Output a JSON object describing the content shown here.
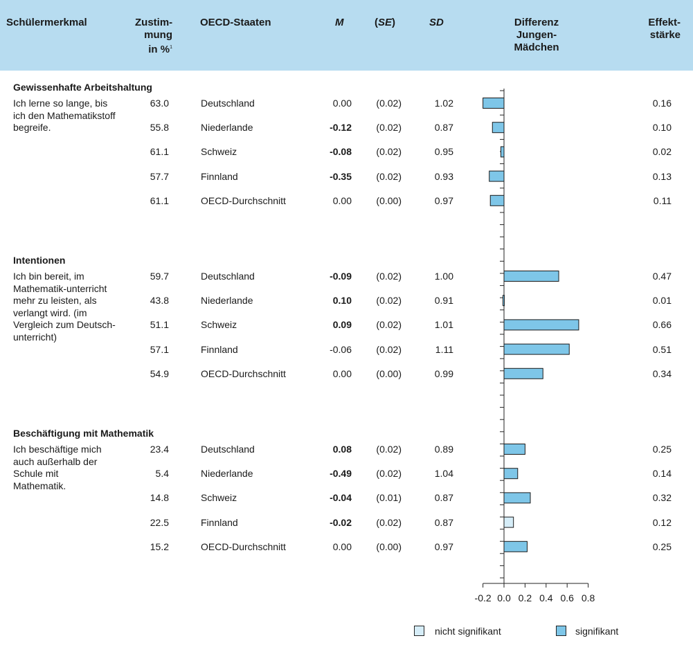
{
  "header": {
    "col_merkmal": "Schülermerkmal",
    "col_zustimmung": [
      "Zustim-",
      "mung",
      "in %"
    ],
    "col_zustimmung_sup": "1",
    "col_staaten": "OECD-Staaten",
    "col_m": "M",
    "col_se_open": "(",
    "col_se": "SE",
    "col_se_close": ")",
    "col_sd": "SD",
    "col_diff": [
      "Differenz",
      "Jungen-",
      "Mädchen"
    ],
    "col_effekt": [
      "Effekt-",
      "stärke"
    ]
  },
  "sections": [
    {
      "title": "Gewissenhafte Arbeitshaltung",
      "description": "Ich lerne so lange, bis ich den Mathematikstoff begreife.",
      "rows": [
        {
          "zustimmung": "63.0",
          "staat": "Deutschland",
          "m": "0.00",
          "m_bold": false,
          "se": "(0.02)",
          "sd": "1.02",
          "effekt": "0.16"
        },
        {
          "zustimmung": "55.8",
          "staat": "Niederlande",
          "m": "-0.12",
          "m_bold": true,
          "se": "(0.02)",
          "sd": "0.87",
          "effekt": "0.10"
        },
        {
          "zustimmung": "61.1",
          "staat": "Schweiz",
          "m": "-0.08",
          "m_bold": true,
          "se": "(0.02)",
          "sd": "0.95",
          "effekt": "0.02"
        },
        {
          "zustimmung": "57.7",
          "staat": "Finnland",
          "m": "-0.35",
          "m_bold": true,
          "se": "(0.02)",
          "sd": "0.93",
          "effekt": "0.13"
        },
        {
          "zustimmung": "61.1",
          "staat": "OECD-Durchschnitt",
          "m": "0.00",
          "m_bold": false,
          "se": "(0.00)",
          "sd": "0.97",
          "effekt": "0.11"
        }
      ]
    },
    {
      "title": "Intentionen",
      "description": "Ich bin bereit, im Mathematik-unterricht mehr zu leisten, als verlangt wird. (im Vergleich zum Deutsch-unterricht)",
      "rows": [
        {
          "zustimmung": "59.7",
          "staat": "Deutschland",
          "m": "-0.09",
          "m_bold": true,
          "se": "(0.02)",
          "sd": "1.00",
          "effekt": "0.47"
        },
        {
          "zustimmung": "43.8",
          "staat": "Niederlande",
          "m": "0.10",
          "m_bold": true,
          "se": "(0.02)",
          "sd": "0.91",
          "effekt": "0.01"
        },
        {
          "zustimmung": "51.1",
          "staat": "Schweiz",
          "m": "0.09",
          "m_bold": true,
          "se": "(0.02)",
          "sd": "1.01",
          "effekt": "0.66"
        },
        {
          "zustimmung": "57.1",
          "staat": "Finnland",
          "m": "-0.06",
          "m_bold": false,
          "se": "(0.02)",
          "sd": "1.11",
          "effekt": "0.51"
        },
        {
          "zustimmung": "54.9",
          "staat": "OECD-Durchschnitt",
          "m": "0.00",
          "m_bold": false,
          "se": "(0.00)",
          "sd": "0.99",
          "effekt": "0.34"
        }
      ]
    },
    {
      "title": "Beschäftigung mit Mathematik",
      "description": "Ich beschäftige mich auch außerhalb der Schule mit Mathematik.",
      "rows": [
        {
          "zustimmung": "23.4",
          "staat": "Deutschland",
          "m": "0.08",
          "m_bold": true,
          "se": "(0.02)",
          "sd": "0.89",
          "effekt": "0.25"
        },
        {
          "zustimmung": "5.4",
          "staat": "Niederlande",
          "m": "-0.49",
          "m_bold": true,
          "se": "(0.02)",
          "sd": "1.04",
          "effekt": "0.14"
        },
        {
          "zustimmung": "14.8",
          "staat": "Schweiz",
          "m": "-0.04",
          "m_bold": true,
          "se": "(0.01)",
          "sd": "0.87",
          "effekt": "0.32"
        },
        {
          "zustimmung": "22.5",
          "staat": "Finnland",
          "m": "-0.02",
          "m_bold": true,
          "se": "(0.02)",
          "sd": "0.87",
          "effekt": "0.12"
        },
        {
          "zustimmung": "15.2",
          "staat": "OECD-Durchschnitt",
          "m": "0.00",
          "m_bold": false,
          "se": "(0.00)",
          "sd": "0.97",
          "effekt": "0.25"
        }
      ]
    }
  ],
  "legend": {
    "nicht_signifikant": "nicht signifikant",
    "signifikant": "signifikant"
  },
  "colors": {
    "header_bg": "#b7dcf0",
    "bar_significant": "#7ec6e8",
    "bar_not_significant": "#d6edf8",
    "axis": "#222222"
  },
  "chart_data": {
    "type": "bar",
    "orientation": "horizontal",
    "xlabel": "",
    "ylabel": "",
    "xlim": [
      -0.2,
      0.8
    ],
    "x_ticks": [
      "-0.2",
      "0.0",
      "0.2",
      "0.4",
      "0.6",
      "0.8"
    ],
    "categories": [
      "Deutschland",
      "Niederlande",
      "Schweiz",
      "Finnland",
      "OECD-Durchschnitt",
      "Deutschland",
      "Niederlande",
      "Schweiz",
      "Finnland",
      "OECD-Durchschnitt",
      "Deutschland",
      "Niederlande",
      "Schweiz",
      "Finnland",
      "OECD-Durchschnitt"
    ],
    "groups": [
      "Gewissenhafte Arbeitshaltung",
      "Intentionen",
      "Beschäftigung mit Mathematik"
    ],
    "values": [
      -0.2,
      -0.11,
      -0.03,
      -0.14,
      -0.13,
      0.52,
      -0.01,
      0.71,
      0.62,
      0.37,
      0.2,
      0.13,
      0.25,
      0.09,
      0.22
    ],
    "significant": [
      true,
      true,
      true,
      true,
      true,
      true,
      true,
      true,
      true,
      true,
      true,
      true,
      true,
      false,
      true
    ]
  }
}
